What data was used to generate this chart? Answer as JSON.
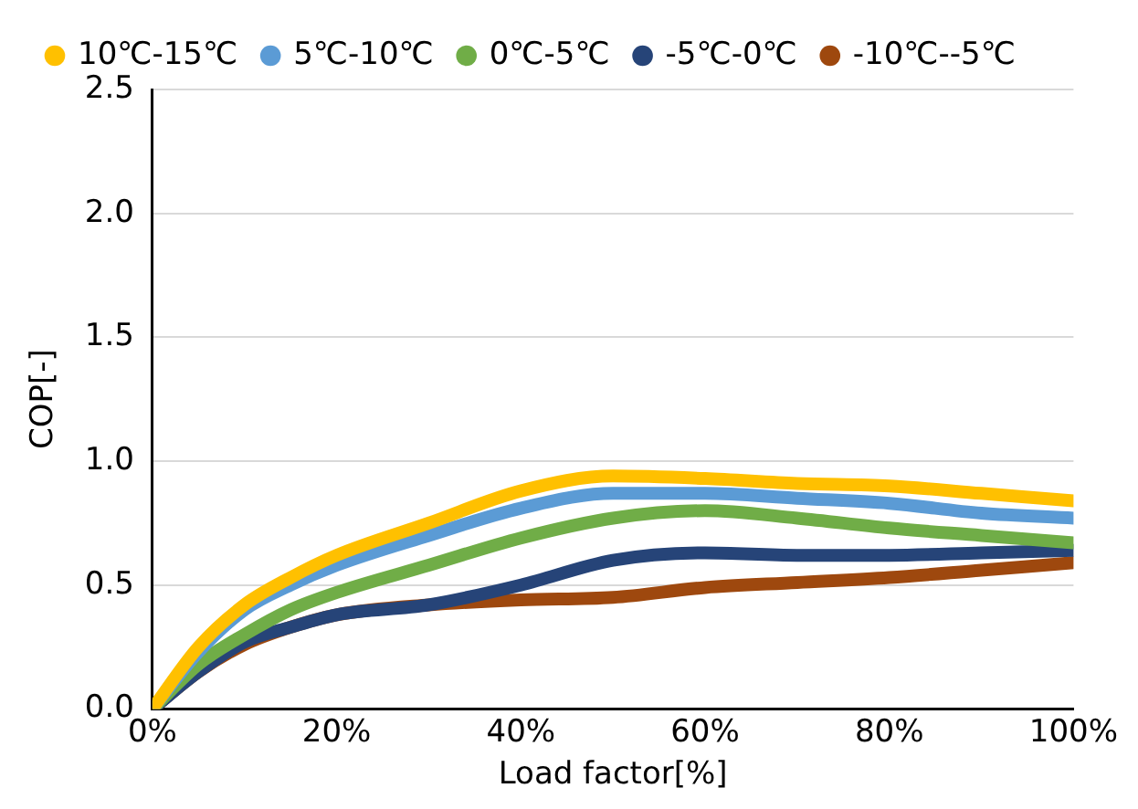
{
  "chart_data": {
    "type": "line",
    "xlabel": "Load factor[%]",
    "ylabel": "COP[-]",
    "x": [
      0,
      5,
      10,
      15,
      20,
      30,
      40,
      50,
      60,
      70,
      80,
      90,
      100
    ],
    "series": [
      {
        "name": "10℃-15℃",
        "color": "#ffc000",
        "values": [
          0,
          0.25,
          0.42,
          0.53,
          0.62,
          0.75,
          0.88,
          0.94,
          0.93,
          0.91,
          0.9,
          0.87,
          0.84
        ]
      },
      {
        "name": "5℃-10℃",
        "color": "#5b9bd5",
        "values": [
          0,
          0.23,
          0.4,
          0.5,
          0.58,
          0.7,
          0.81,
          0.87,
          0.87,
          0.85,
          0.83,
          0.79,
          0.77
        ]
      },
      {
        "name": "0℃-5℃",
        "color": "#70ad47",
        "values": [
          0,
          0.18,
          0.3,
          0.4,
          0.47,
          0.58,
          0.69,
          0.77,
          0.8,
          0.77,
          0.73,
          0.7,
          0.67
        ]
      },
      {
        "name": "-5℃-0℃",
        "color": "#264478",
        "values": [
          0,
          0.15,
          0.27,
          0.33,
          0.38,
          0.42,
          0.5,
          0.6,
          0.63,
          0.62,
          0.62,
          0.63,
          0.64
        ]
      },
      {
        "name": "-10℃--5℃",
        "color": "#9e480e",
        "values": [
          0,
          0.15,
          0.26,
          0.33,
          0.38,
          0.42,
          0.44,
          0.45,
          0.49,
          0.51,
          0.53,
          0.56,
          0.59
        ]
      }
    ],
    "xlim": [
      0,
      100
    ],
    "xticks": [
      {
        "value": 0,
        "label": "0%"
      },
      {
        "value": 20,
        "label": "20%"
      },
      {
        "value": 40,
        "label": "40%"
      },
      {
        "value": 60,
        "label": "60%"
      },
      {
        "value": 80,
        "label": "80%"
      },
      {
        "value": 100,
        "label": "100%"
      }
    ],
    "ylim": [
      0,
      2.5
    ],
    "yticks": [
      {
        "value": 0,
        "label": "0.0"
      },
      {
        "value": 0.5,
        "label": "0.5"
      },
      {
        "value": 1,
        "label": "1.0"
      },
      {
        "value": 1.5,
        "label": "1.5"
      },
      {
        "value": 2,
        "label": "2.0"
      },
      {
        "value": 2.5,
        "label": "2.5"
      }
    ],
    "grid": "y",
    "legend": "top",
    "marker": "none",
    "line_style": "solid"
  }
}
